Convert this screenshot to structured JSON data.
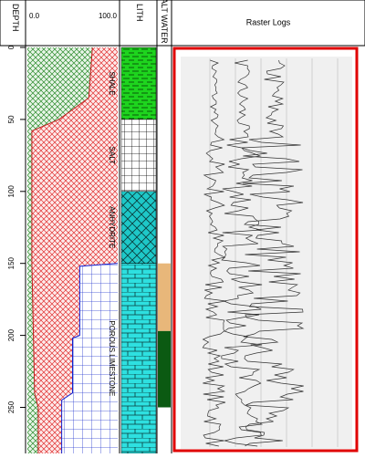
{
  "headers": {
    "depth": "DEPTH",
    "lith": "LITH",
    "fluid": "SALT WATER",
    "raster": "Raster Logs"
  },
  "depth_axis": {
    "lim": [
      0,
      282
    ],
    "ticks": [
      0,
      50,
      100,
      150,
      200,
      250
    ]
  },
  "track1": {
    "scale": [
      {
        "value": 0,
        "label": "0.0"
      },
      {
        "value": 100,
        "label": "100.0"
      }
    ],
    "curves": [
      {
        "depth": [
          0,
          35,
          50,
          58,
          150,
          240,
          250,
          282
        ],
        "values": [
          72,
          68,
          35,
          5,
          5,
          8,
          12,
          12
        ]
      },
      {
        "depth": [
          150,
          152,
          200,
          202,
          240,
          245,
          282
        ],
        "values": [
          100,
          58,
          58,
          50,
          50,
          38,
          38
        ]
      }
    ]
  },
  "lithology": [
    {
      "label": "SHALE",
      "top": 0,
      "base": 50,
      "pattern": "shale"
    },
    {
      "label": "SALT",
      "top": 50,
      "base": 100,
      "pattern": "salt"
    },
    {
      "label": "ANHYDRITE",
      "top": 100,
      "base": 150,
      "pattern": "anhydrite"
    },
    {
      "label": "POROUS LIMESTONE",
      "top": 150,
      "base": 282,
      "pattern": "limestone"
    }
  ],
  "fluid": [
    {
      "top": 150,
      "base": 197,
      "color": "#e8b77a"
    },
    {
      "top": 197,
      "base": 250,
      "color": "#0b5a12"
    }
  ]
}
